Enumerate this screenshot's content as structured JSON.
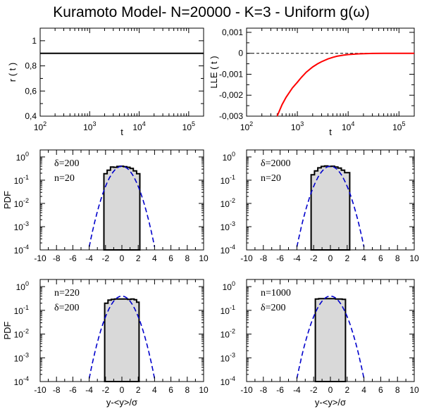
{
  "title": "Kuramoto Model- N=20000 - K=3 - Uniform g(ω)",
  "chart_data": [
    {
      "id": "r_panel",
      "type": "line",
      "xscale": "log",
      "xlabel": "t",
      "ylabel": "r ( t )",
      "xlim": [
        100,
        200000
      ],
      "ylim": [
        0.4,
        1.1
      ],
      "xticks": [
        {
          "v": 100,
          "label": "10",
          "exp": "2"
        },
        {
          "v": 1000,
          "label": "10",
          "exp": "3"
        },
        {
          "v": 10000,
          "label": "10",
          "exp": "4"
        },
        {
          "v": 100000,
          "label": "10",
          "exp": "5"
        }
      ],
      "yticks": [
        {
          "v": 0.4,
          "label": "0,4"
        },
        {
          "v": 0.6,
          "label": "0,6"
        },
        {
          "v": 0.8,
          "label": "0,8"
        },
        {
          "v": 1.0,
          "label": "1"
        }
      ],
      "series": [
        {
          "color": "#000000",
          "x": [
            100,
            200000
          ],
          "y": [
            0.9,
            0.9
          ]
        }
      ]
    },
    {
      "id": "lle_panel",
      "type": "line",
      "xscale": "log",
      "xlabel": "t",
      "ylabel": "LLE ( t )",
      "xlim": [
        100,
        200000
      ],
      "ylim": [
        -0.003,
        0.0012
      ],
      "xticks": [
        {
          "v": 100,
          "label": "10",
          "exp": "2"
        },
        {
          "v": 1000,
          "label": "10",
          "exp": "3"
        },
        {
          "v": 10000,
          "label": "10",
          "exp": "4"
        },
        {
          "v": 100000,
          "label": "10",
          "exp": "5"
        }
      ],
      "yticks": [
        {
          "v": -0.003,
          "label": "-0,003"
        },
        {
          "v": -0.002,
          "label": "-0,002"
        },
        {
          "v": -0.001,
          "label": "-0,001"
        },
        {
          "v": 0,
          "label": "0"
        },
        {
          "v": 0.001,
          "label": "0,001"
        }
      ],
      "reference_line": {
        "y": 0,
        "style": "dashed",
        "color": "#000000"
      },
      "series": [
        {
          "color": "#ff0000",
          "x": [
            400,
            500,
            600,
            800,
            1000,
            1200,
            1500,
            2000,
            2500,
            3000,
            4000,
            5000,
            6000,
            8000,
            10000,
            15000,
            20000,
            30000,
            50000,
            100000,
            200000
          ],
          "y": [
            -0.003,
            -0.00245,
            -0.0021,
            -0.00165,
            -0.00138,
            -0.00115,
            -0.0009,
            -0.00065,
            -0.0005,
            -0.0004,
            -0.00027,
            -0.00019,
            -0.00014,
            -9e-05,
            -6e-05,
            -3e-05,
            -1.5e-05,
            -6e-06,
            -2e-06,
            0,
            0
          ]
        }
      ]
    },
    {
      "id": "pdf_panel_1",
      "type": "histogram",
      "yscale": "log",
      "ylabel": "PDF",
      "xlabel": "",
      "xlim": [
        -10,
        10
      ],
      "ylim": [
        0.0001,
        2
      ],
      "annotations": [
        "δ=200",
        "n=20"
      ],
      "histogram": {
        "edges": [
          -2.2,
          -1.8,
          -1.4,
          -1.0,
          -0.6,
          -0.2,
          0.2,
          0.6,
          1.0,
          1.4,
          1.8,
          2.2
        ],
        "values": [
          0.19,
          0.27,
          0.37,
          0.36,
          0.39,
          0.4,
          0.38,
          0.36,
          0.32,
          0.25,
          0.19
        ]
      },
      "gaussian": {
        "color": "#0000cc",
        "style": "dashed",
        "x_range": [
          -4,
          4
        ]
      }
    },
    {
      "id": "pdf_panel_2",
      "type": "histogram",
      "yscale": "log",
      "ylabel": "",
      "xlabel": "",
      "xlim": [
        -10,
        10
      ],
      "ylim": [
        0.0001,
        2
      ],
      "annotations": [
        "δ=2000",
        "n=20"
      ],
      "histogram": {
        "edges": [
          -2.3,
          -1.9,
          -1.5,
          -1.1,
          -0.7,
          -0.3,
          0.1,
          0.5,
          0.9,
          1.3,
          1.7,
          2.3
        ],
        "values": [
          0.17,
          0.25,
          0.34,
          0.39,
          0.41,
          0.39,
          0.4,
          0.37,
          0.33,
          0.27,
          0.21
        ]
      },
      "gaussian": {
        "color": "#0000cc",
        "style": "dashed",
        "x_range": [
          -4,
          4
        ]
      }
    },
    {
      "id": "pdf_panel_3",
      "type": "histogram",
      "yscale": "log",
      "ylabel": "PDF",
      "xlabel": "y-<y>/σ",
      "xlim": [
        -10,
        10
      ],
      "ylim": [
        0.0001,
        2
      ],
      "annotations": [
        "n=220",
        "δ=200"
      ],
      "histogram": {
        "edges": [
          -2.1,
          -1.7,
          -1.3,
          -0.9,
          -0.5,
          -0.1,
          0.3,
          0.7,
          1.1,
          1.5,
          1.8,
          2.1
        ],
        "values": [
          0.2,
          0.27,
          0.29,
          0.3,
          0.3,
          0.3,
          0.3,
          0.29,
          0.3,
          0.28,
          0.22
        ]
      },
      "gaussian": {
        "color": "#0000cc",
        "style": "dashed",
        "x_range": [
          -4,
          4
        ]
      }
    },
    {
      "id": "pdf_panel_4",
      "type": "histogram",
      "yscale": "log",
      "ylabel": "",
      "xlabel": "y-<y>/σ",
      "xlim": [
        -10,
        10
      ],
      "ylim": [
        0.0001,
        2
      ],
      "annotations": [
        "n=1000",
        "δ=200"
      ],
      "histogram": {
        "edges": [
          -1.8,
          -1.4,
          -1.0,
          -0.6,
          -0.2,
          0.2,
          0.6,
          1.0,
          1.4,
          1.8
        ],
        "values": [
          0.3,
          0.31,
          0.31,
          0.31,
          0.31,
          0.31,
          0.3,
          0.3,
          0.29
        ]
      },
      "gaussian": {
        "color": "#0000cc",
        "style": "dashed",
        "x_range": [
          -4,
          4
        ]
      }
    }
  ],
  "pdf_axes": {
    "xticks": [
      -10,
      -8,
      -6,
      -4,
      -2,
      0,
      2,
      4,
      6,
      8,
      10
    ],
    "yticks": [
      {
        "v": 0.0001,
        "label": "10",
        "exp": "-4"
      },
      {
        "v": 0.001,
        "label": "10",
        "exp": "-3"
      },
      {
        "v": 0.01,
        "label": "10",
        "exp": "-2"
      },
      {
        "v": 0.1,
        "label": "10",
        "exp": "-1"
      },
      {
        "v": 1,
        "label": "10",
        "exp": "0"
      }
    ]
  }
}
